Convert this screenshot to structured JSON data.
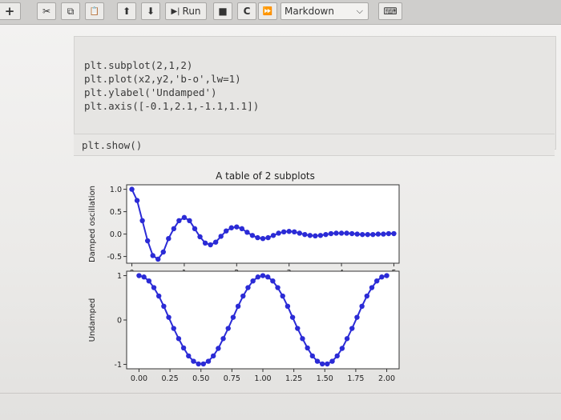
{
  "toolbar": {
    "buttons": [
      {
        "name": "insert-cell-button",
        "icon": "plus-icon",
        "glyph": "+"
      },
      {
        "name": "cut-button",
        "icon": "scissors-icon",
        "glyph": "✂"
      },
      {
        "name": "copy-button",
        "icon": "copy-icon",
        "glyph": "⧉"
      },
      {
        "name": "paste-button",
        "icon": "paste-icon",
        "glyph": "📋"
      },
      {
        "name": "move-up-button",
        "icon": "arrow-up-icon",
        "glyph": "⬆"
      },
      {
        "name": "move-down-button",
        "icon": "arrow-down-icon",
        "glyph": "⬇"
      },
      {
        "name": "interrupt-button",
        "icon": "stop-icon",
        "glyph": "■"
      },
      {
        "name": "restart-button",
        "icon": "restart-icon",
        "glyph": "C"
      },
      {
        "name": "restart-run-all-button",
        "icon": "fast-forward-icon",
        "glyph": "⏩"
      },
      {
        "name": "keyboard-button",
        "icon": "keyboard-icon",
        "glyph": "⌨"
      }
    ],
    "run_label": "Run",
    "cell_type": "Markdown"
  },
  "code": [
    "plt.subplot(2,1,2)",
    "plt.plot(x2,y2,'b-o',lw=1)",
    "plt.ylabel('Undamped')",
    "plt.axis([-0.1,2.1,-1.1,1.1])"
  ],
  "show_code": "plt.show()",
  "chart_data": [
    {
      "type": "line",
      "title": "A table of 2 subplots",
      "xlabel": "",
      "ylabel": "Damped oscillation",
      "xlim": [
        -0.1,
        5.1
      ],
      "ylim": [
        -0.65,
        1.1
      ],
      "xticks": [
        "0",
        "1",
        "2",
        "3",
        "4",
        "5"
      ],
      "yticks": [
        "1.0",
        "0.5",
        "0.0",
        "-0.5"
      ],
      "marker": "o",
      "color": "#2b2bd6",
      "series": [
        {
          "x": [
            0,
            0.1,
            0.2,
            0.3,
            0.4,
            0.5,
            0.6,
            0.7,
            0.8,
            0.9,
            1.0,
            1.1,
            1.2,
            1.3,
            1.4,
            1.5,
            1.6,
            1.7,
            1.8,
            1.9,
            2.0,
            2.1,
            2.2,
            2.3,
            2.4,
            2.5,
            2.6,
            2.7,
            2.8,
            2.9,
            3.0,
            3.1,
            3.2,
            3.3,
            3.4,
            3.5,
            3.6,
            3.7,
            3.8,
            3.9,
            4.0,
            4.1,
            4.2,
            4.3,
            4.4,
            4.5,
            4.6,
            4.7,
            4.8,
            4.9,
            5.0
          ],
          "y": [
            1.0,
            0.75,
            0.3,
            -0.15,
            -0.48,
            -0.56,
            -0.4,
            -0.1,
            0.12,
            0.3,
            0.37,
            0.3,
            0.12,
            -0.06,
            -0.2,
            -0.24,
            -0.18,
            -0.05,
            0.07,
            0.14,
            0.16,
            0.12,
            0.04,
            -0.03,
            -0.08,
            -0.1,
            -0.08,
            -0.03,
            0.02,
            0.05,
            0.06,
            0.05,
            0.02,
            -0.01,
            -0.03,
            -0.04,
            -0.03,
            -0.01,
            0.01,
            0.02,
            0.02,
            0.02,
            0.01,
            0.0,
            -0.01,
            -0.01,
            -0.01,
            0.0,
            0.0,
            0.01,
            0.01
          ]
        }
      ]
    },
    {
      "type": "line",
      "xlabel": "",
      "ylabel": "Undamped",
      "xlim": [
        -0.1,
        2.1
      ],
      "ylim": [
        -1.1,
        1.1
      ],
      "xticks": [
        "0.00",
        "0.25",
        "0.50",
        "0.75",
        "1.00",
        "1.25",
        "1.50",
        "1.75",
        "2.00"
      ],
      "yticks": [
        "1",
        "0",
        "-1"
      ],
      "marker": "o",
      "color": "#2b2bd6",
      "series": [
        {
          "x": [
            0.0,
            0.04,
            0.08,
            0.12,
            0.16,
            0.2,
            0.24,
            0.28,
            0.32,
            0.36,
            0.4,
            0.44,
            0.48,
            0.52,
            0.56,
            0.6,
            0.64,
            0.68,
            0.72,
            0.76,
            0.8,
            0.84,
            0.88,
            0.92,
            0.96,
            1.0,
            1.04,
            1.08,
            1.12,
            1.16,
            1.2,
            1.24,
            1.28,
            1.32,
            1.36,
            1.4,
            1.44,
            1.48,
            1.52,
            1.56,
            1.6,
            1.64,
            1.68,
            1.72,
            1.76,
            1.8,
            1.84,
            1.88,
            1.92,
            1.96,
            2.0
          ],
          "y": [
            1.0,
            0.97,
            0.88,
            0.73,
            0.54,
            0.31,
            0.06,
            -0.19,
            -0.42,
            -0.63,
            -0.81,
            -0.93,
            -0.99,
            -0.99,
            -0.93,
            -0.81,
            -0.64,
            -0.42,
            -0.19,
            0.06,
            0.31,
            0.54,
            0.73,
            0.88,
            0.97,
            1.0,
            0.97,
            0.88,
            0.73,
            0.54,
            0.31,
            0.06,
            -0.19,
            -0.42,
            -0.63,
            -0.81,
            -0.93,
            -0.99,
            -0.99,
            -0.93,
            -0.81,
            -0.64,
            -0.42,
            -0.19,
            0.06,
            0.31,
            0.54,
            0.73,
            0.88,
            0.97,
            1.0
          ]
        }
      ]
    }
  ]
}
